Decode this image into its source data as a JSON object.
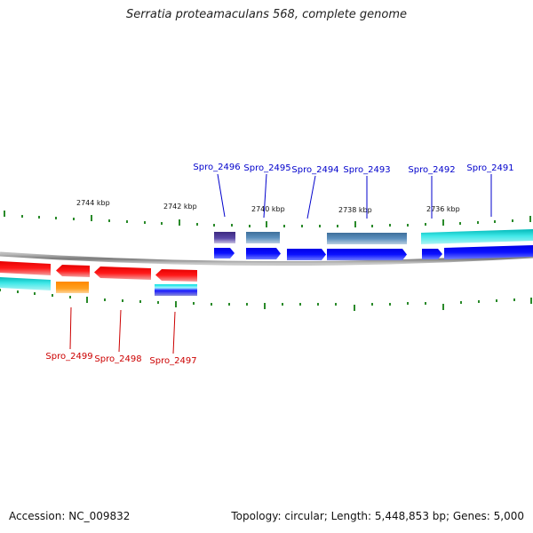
{
  "title": "Serratia proteamaculans 568, complete genome",
  "footer": {
    "accession": "Accession: NC_009832",
    "summary": "Topology: circular; Length: 5,448,853 bp; Genes: 5,000"
  },
  "colors": {
    "forward_label": "#0000cc",
    "reverse_label": "#cc0000",
    "tick": "#2a8a2a",
    "backbone": "#888888"
  },
  "kbp_labels": [
    "2744 kbp",
    "2742 kbp",
    "2740 kbp",
    "2738 kbp",
    "2736 kbp"
  ],
  "genes_forward": [
    {
      "name": "Spro_2496"
    },
    {
      "name": "Spro_2495"
    },
    {
      "name": "Spro_2494"
    },
    {
      "name": "Spro_2493"
    },
    {
      "name": "Spro_2492"
    },
    {
      "name": "Spro_2491"
    }
  ],
  "genes_reverse": [
    {
      "name": "Spro_2499"
    },
    {
      "name": "Spro_2498"
    },
    {
      "name": "Spro_2497"
    }
  ]
}
